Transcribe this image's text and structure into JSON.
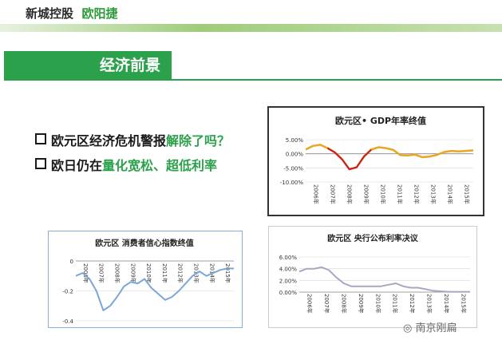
{
  "header": {
    "company": "新城控股",
    "person": "欧阳捷"
  },
  "section": {
    "title": "经济前景"
  },
  "bullets": [
    {
      "plain": "欧元区经济危机警报",
      "highlight": "解除了吗？"
    },
    {
      "plain": "欧日仍在",
      "highlight": "量化宽松、超低利率"
    }
  ],
  "watermark": {
    "text": "南京刚扁"
  },
  "colors": {
    "brand_green": "#2aa14a",
    "gdp_line": "#e8a623",
    "gdp_circle": "#cc1f1f",
    "confidence_line": "#7ba7d8",
    "rate_line": "#a7a7c4"
  },
  "chart_data": [
    {
      "type": "line",
      "title": "欧元区• GDP年率终值",
      "ylim": [
        -10,
        5
      ],
      "yticks": [
        "5.00%",
        "0.00%",
        "-5.00%",
        "-10.00%"
      ],
      "ytick_values": [
        5,
        0,
        -5,
        -10
      ],
      "xticks": [
        "2006年",
        "2007年",
        "2008年",
        "2009年",
        "2010年",
        "2011年",
        "2012年",
        "2013年",
        "2014年",
        "2015年"
      ],
      "series": [
        {
          "values": [
            1.5,
            2.8,
            3.2,
            2.0,
            0.5,
            -2.0,
            -5.5,
            -4.8,
            -1.0,
            1.5,
            2.3,
            2.0,
            1.4,
            -0.5,
            -0.6,
            -0.3,
            -1.2,
            -1.0,
            -0.4,
            0.6,
            1.0,
            0.8,
            1.0,
            1.2
          ]
        }
      ]
    },
    {
      "type": "line",
      "title": "欧元区  消费者信心指数终值",
      "ylim": [
        -0.4,
        0
      ],
      "yticks": [
        "0",
        "-0.2",
        "-0.4"
      ],
      "ytick_values": [
        0,
        -0.2,
        -0.4
      ],
      "xticks": [
        "2006年",
        "2007年",
        "2008年",
        "2009年",
        "2010年",
        "2011年",
        "2012年",
        "2013年",
        "2014年",
        "2015年"
      ],
      "series": [
        {
          "values": [
            -0.1,
            -0.08,
            -0.12,
            -0.2,
            -0.33,
            -0.3,
            -0.24,
            -0.17,
            -0.14,
            -0.15,
            -0.12,
            -0.18,
            -0.22,
            -0.26,
            -0.24,
            -0.2,
            -0.15,
            -0.1,
            -0.07,
            -0.1,
            -0.08,
            -0.06,
            -0.05,
            -0.05
          ]
        }
      ]
    },
    {
      "type": "line",
      "title": "欧元区  央行公布利率决议",
      "ylim": [
        0,
        6
      ],
      "yticks": [
        "6.00%",
        "4.00%",
        "2.00%",
        "0.00%"
      ],
      "ytick_values": [
        6,
        4,
        2,
        0
      ],
      "xticks": [
        "2006年",
        "2007年",
        "2008年",
        "2009年",
        "2010年",
        "2011年",
        "2012年",
        "2013年",
        "2014年",
        "2015年"
      ],
      "series": [
        {
          "values": [
            3.5,
            4.0,
            4.0,
            4.25,
            3.75,
            2.5,
            1.5,
            1.0,
            1.0,
            1.0,
            1.0,
            1.0,
            1.25,
            1.5,
            1.0,
            0.75,
            0.75,
            0.5,
            0.25,
            0.15,
            0.05,
            0.05,
            0.05,
            0.05
          ]
        }
      ]
    }
  ]
}
